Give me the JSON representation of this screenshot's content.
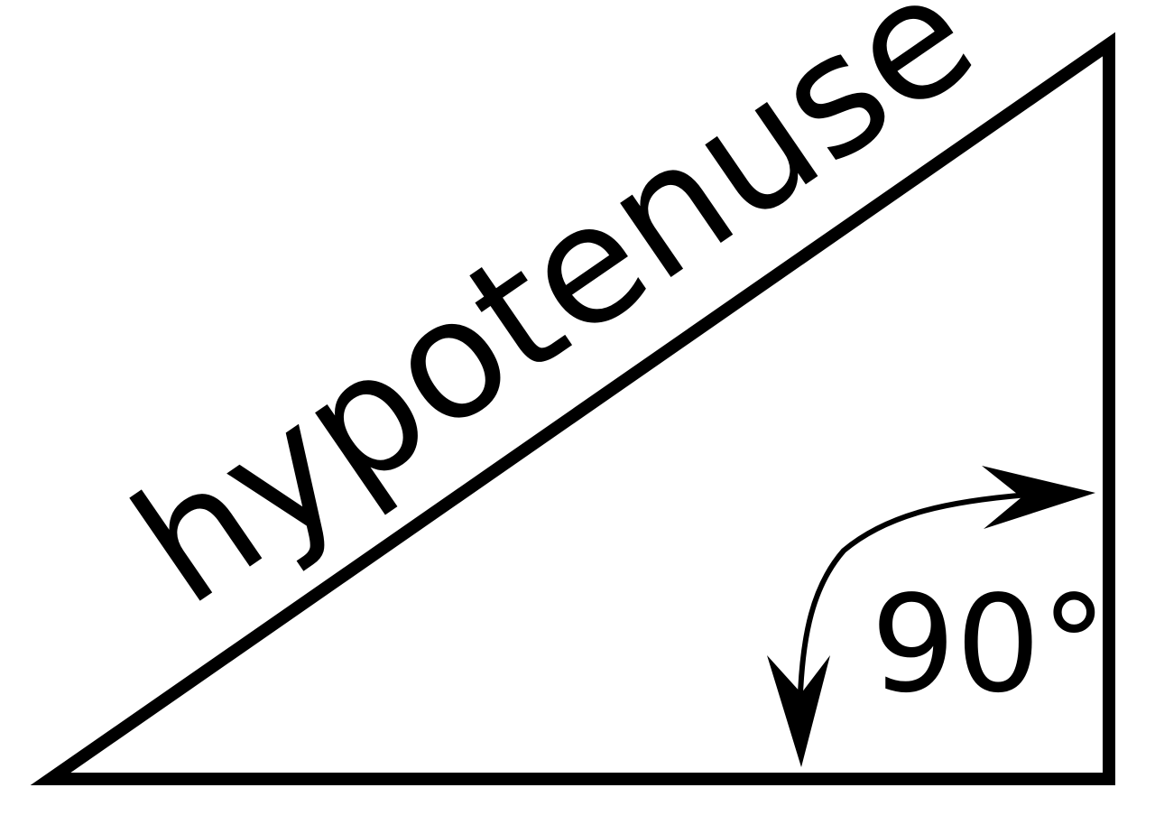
{
  "diagram": {
    "hypotenuse_label": "hypotenuse",
    "angle_label": "90°"
  },
  "colors": {
    "stroke": "#000000",
    "background": "#ffffff"
  },
  "icons": {
    "angle_marker": "double-headed-curved-arrow-icon"
  }
}
